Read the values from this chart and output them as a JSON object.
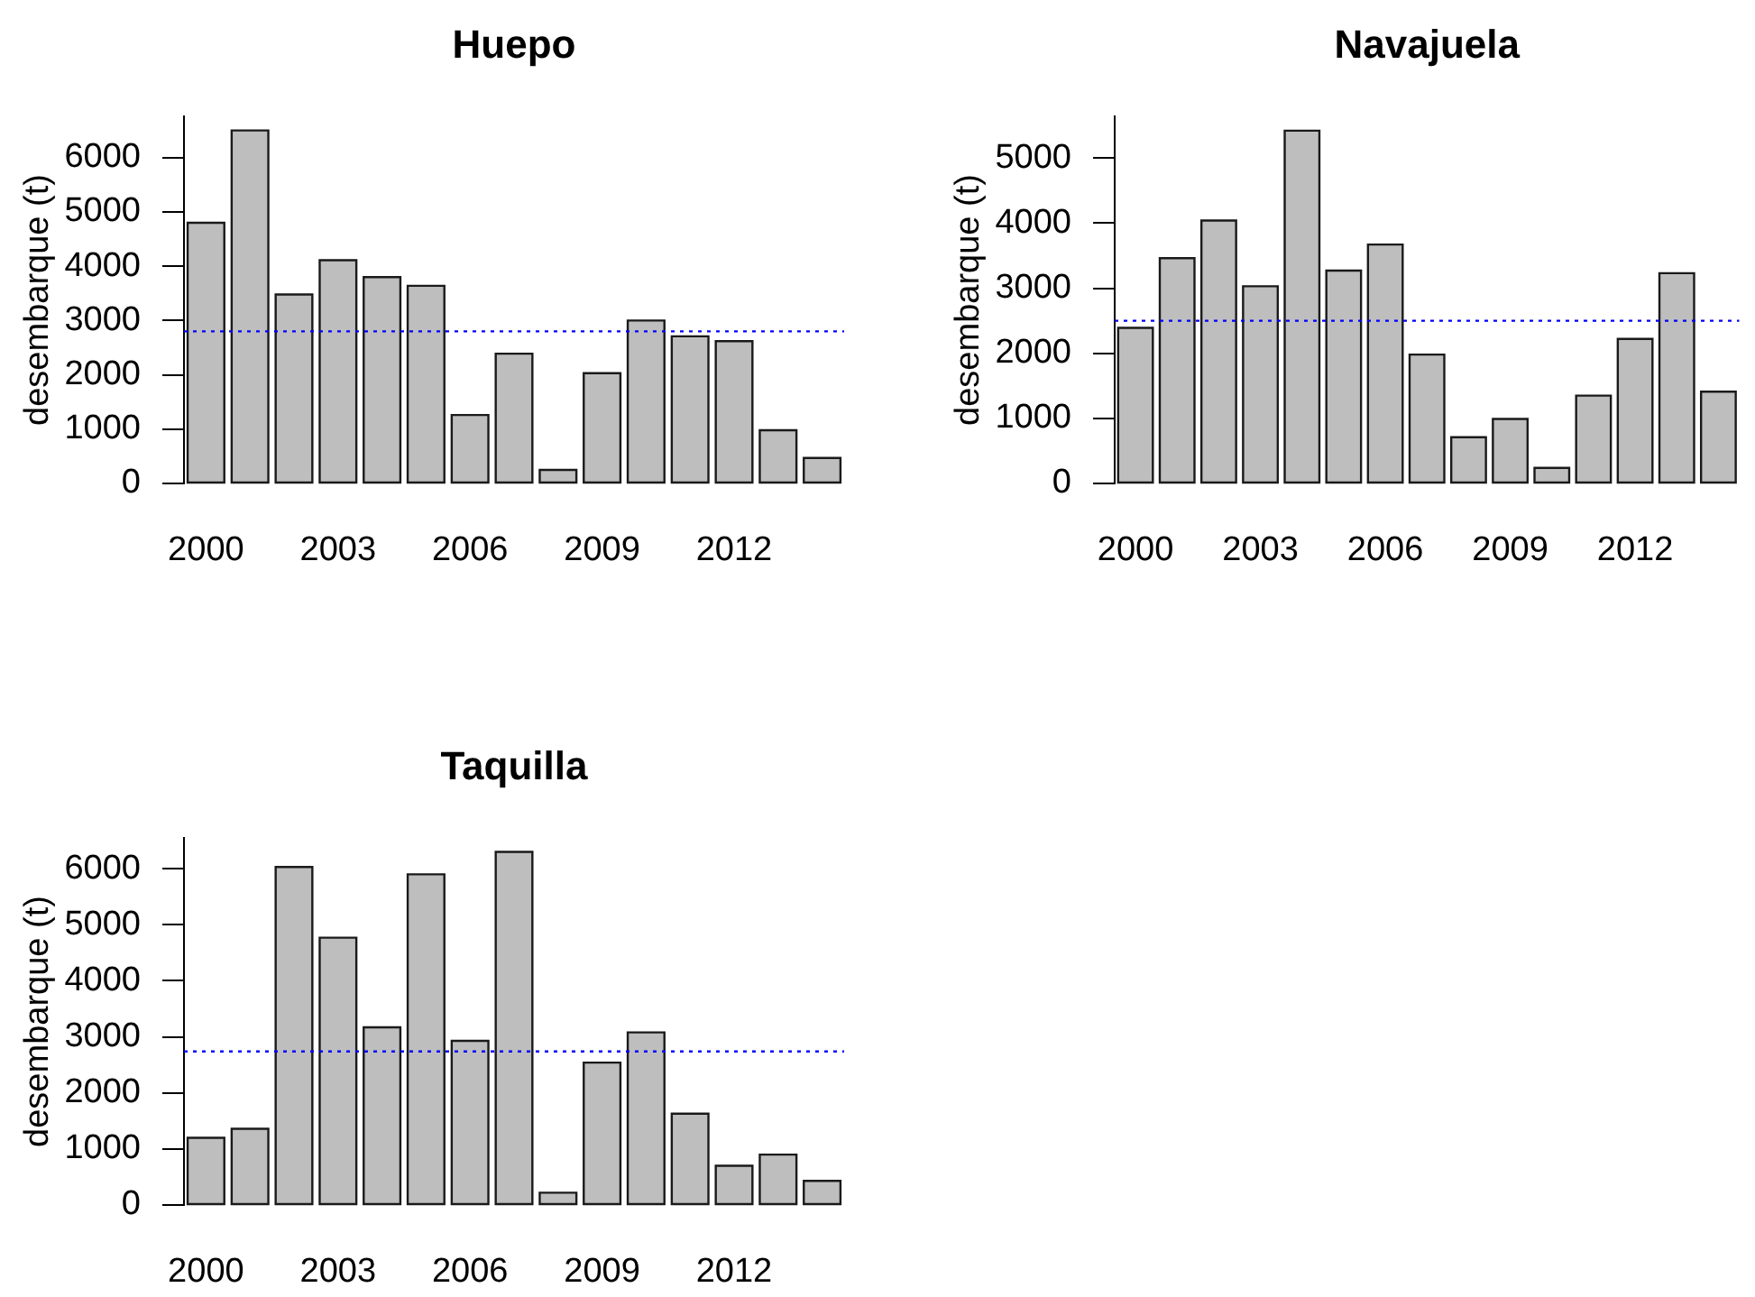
{
  "chart_data": [
    {
      "type": "bar",
      "title": "Huepo",
      "ylabel": "desembarque (t)",
      "categories": [
        "2000",
        null,
        null,
        "2003",
        null,
        null,
        "2006",
        null,
        null,
        "2009",
        null,
        null,
        "2012",
        null,
        null
      ],
      "values": [
        4800,
        6500,
        3480,
        4110,
        3800,
        3640,
        1260,
        2390,
        250,
        2030,
        3000,
        2710,
        2620,
        980,
        470
      ],
      "color": "#bebebe",
      "ylim": [
        0,
        6760
      ],
      "yticks": [
        0,
        1000,
        2000,
        3000,
        4000,
        5000,
        6000
      ],
      "ref_lines": [
        {
          "axis": "y",
          "value": 2800,
          "color": "#0000ff",
          "line_style": "dotted"
        }
      ]
    },
    {
      "type": "bar",
      "title": "Navajuela",
      "ylabel": "desembarque (t)",
      "categories": [
        "2000",
        null,
        null,
        "2003",
        null,
        null,
        "2006",
        null,
        null,
        "2009",
        null,
        null,
        "2012",
        null,
        null
      ],
      "values": [
        2390,
        3460,
        4040,
        3030,
        5420,
        3270,
        3670,
        1980,
        710,
        990,
        240,
        1350,
        2220,
        3230,
        1410
      ],
      "color": "#bebebe",
      "ylim": [
        0,
        5640
      ],
      "yticks": [
        0,
        1000,
        2000,
        3000,
        4000,
        5000
      ],
      "ref_lines": [
        {
          "axis": "y",
          "value": 2500,
          "color": "#0000ff",
          "line_style": "dotted"
        }
      ]
    },
    {
      "type": "bar",
      "title": "Taquilla",
      "ylabel": "desembarque (t)",
      "categories": [
        "2000",
        null,
        null,
        "2003",
        null,
        null,
        "2006",
        null,
        null,
        "2009",
        null,
        null,
        "2012",
        null,
        null
      ],
      "values": [
        1200,
        1360,
        6030,
        4770,
        3170,
        5900,
        2930,
        6300,
        220,
        2540,
        3080,
        1630,
        700,
        900,
        430
      ],
      "color": "#bebebe",
      "ylim": [
        0,
        6550
      ],
      "yticks": [
        0,
        1000,
        2000,
        3000,
        4000,
        5000,
        6000
      ],
      "ref_lines": [
        {
          "axis": "y",
          "value": 2740,
          "color": "#0000ff",
          "line_style": "dotted"
        }
      ]
    }
  ]
}
